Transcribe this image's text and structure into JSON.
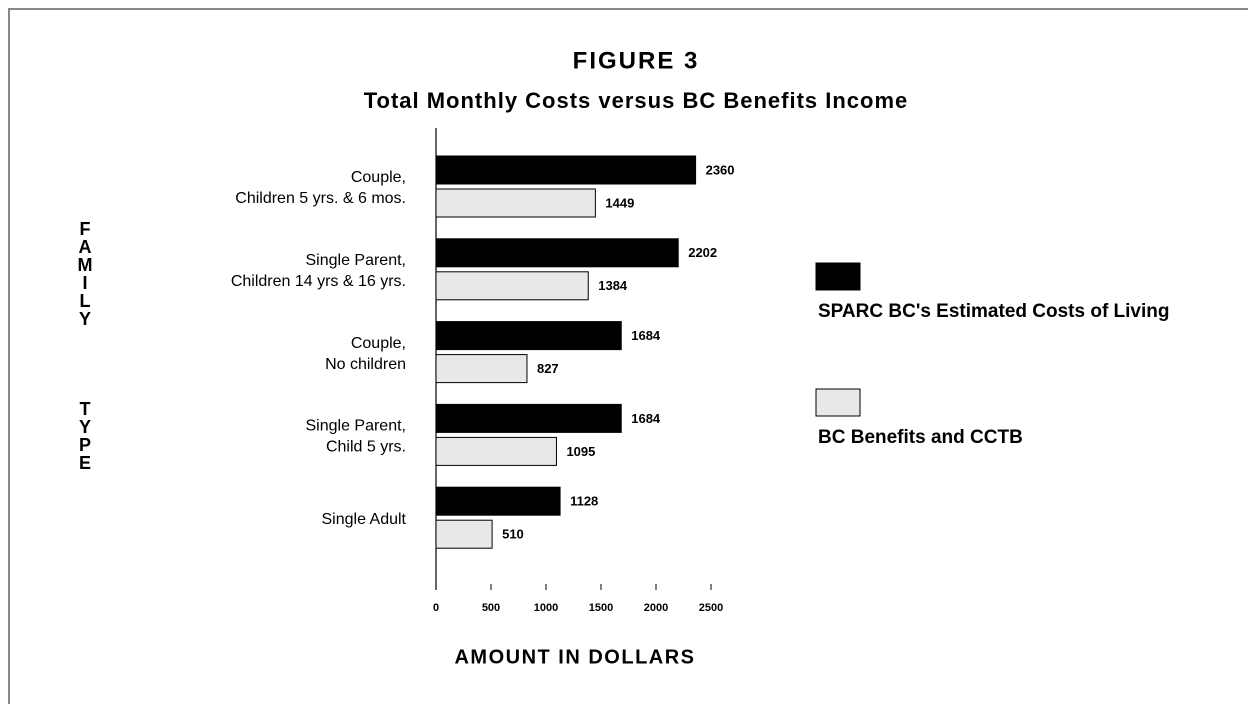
{
  "chart_data": {
    "type": "bar",
    "orientation": "horizontal",
    "title": "FIGURE 3",
    "subtitle": "Total Monthly Costs versus BC Benefits Income",
    "ylabel": "FAMILY TYPE",
    "xlabel": "AMOUNT IN DOLLARS",
    "categories": [
      [
        "Couple,",
        "Children 5 yrs. & 6 mos."
      ],
      [
        "Single Parent,",
        "Children 14 yrs & 16 yrs."
      ],
      [
        "Couple,",
        "No children"
      ],
      [
        "Single Parent,",
        "Child 5 yrs."
      ],
      [
        "Single Adult"
      ]
    ],
    "series": [
      {
        "name": "SPARC BC's Estimated Costs of Living",
        "color": "#000000",
        "values": [
          2360,
          2202,
          1684,
          1684,
          1128
        ]
      },
      {
        "name": "BC Benefits and CCTB",
        "color": "#e8e8e8",
        "values": [
          1449,
          1384,
          827,
          1095,
          510
        ]
      }
    ],
    "xlim": [
      0,
      2500
    ],
    "xticks": [
      0,
      500,
      1000,
      1500,
      2000,
      2500
    ],
    "grid": false,
    "legend": "right"
  }
}
